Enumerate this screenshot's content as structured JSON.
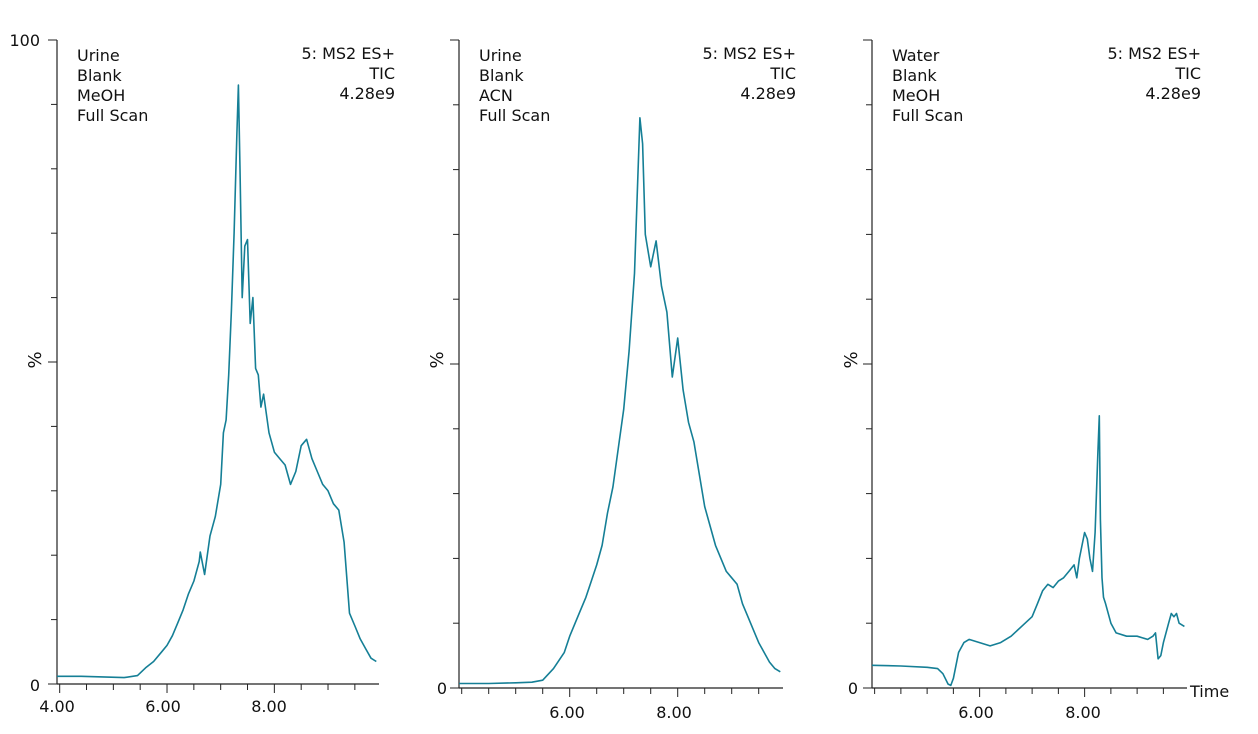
{
  "chart_data": [
    {
      "type": "line",
      "annotations": [
        "Urine",
        "Blank",
        "MeOH",
        "Full Scan"
      ],
      "header": [
        "5: MS2 ES+",
        "TIC",
        "4.28e9"
      ],
      "ylabel": "%",
      "y_tick_labels": [
        "100",
        "0"
      ],
      "x_tick_labels": [
        "4.00",
        "6.00",
        "8.00"
      ],
      "xlabel": "",
      "xlim": [
        3.95,
        9.95
      ],
      "ylim": [
        0,
        100
      ],
      "line_color": "#157f96",
      "series": [
        {
          "x": [
            3.95,
            4.4,
            4.8,
            5.2,
            5.45,
            5.6,
            5.75,
            5.9,
            6.0,
            6.1,
            6.2,
            6.3,
            6.4,
            6.5,
            6.6,
            6.62,
            6.7,
            6.8,
            6.9,
            7.0,
            7.05,
            7.1,
            7.15,
            7.2,
            7.25,
            7.3,
            7.33,
            7.36,
            7.4,
            7.45,
            7.5,
            7.55,
            7.6,
            7.65,
            7.7,
            7.75,
            7.8,
            7.9,
            8.0,
            8.1,
            8.2,
            8.3,
            8.4,
            8.5,
            8.6,
            8.7,
            8.8,
            8.9,
            9.0,
            9.1,
            9.2,
            9.3,
            9.4,
            9.5,
            9.6,
            9.7,
            9.8,
            9.9
          ],
          "y": [
            1.2,
            1.2,
            1.1,
            1.0,
            1.3,
            2.5,
            3.5,
            5,
            6,
            7.5,
            9.5,
            11.5,
            14,
            16,
            19,
            20.5,
            17,
            23,
            26,
            31,
            39,
            41,
            48,
            58,
            70,
            85,
            93,
            80,
            60,
            68,
            69,
            56,
            60,
            49,
            48,
            43,
            45,
            39,
            36,
            35,
            34,
            31,
            33,
            37,
            38,
            35,
            33,
            31,
            30,
            28,
            27,
            22,
            11,
            9,
            7,
            5.5,
            4,
            3.5
          ]
        }
      ]
    },
    {
      "type": "line",
      "annotations": [
        "Urine",
        "Blank",
        "ACN",
        "Full Scan"
      ],
      "header": [
        "5: MS2 ES+",
        "TIC",
        "4.28e9"
      ],
      "ylabel": "%",
      "y_tick_labels": [
        "0"
      ],
      "x_tick_labels": [
        "6.00",
        "8.00"
      ],
      "xlabel": "",
      "xlim": [
        3.95,
        9.95
      ],
      "ylim": [
        0,
        100
      ],
      "line_color": "#157f96",
      "series": [
        {
          "x": [
            3.95,
            4.5,
            5.0,
            5.3,
            5.5,
            5.7,
            5.9,
            6.0,
            6.1,
            6.2,
            6.3,
            6.4,
            6.5,
            6.6,
            6.7,
            6.8,
            6.9,
            7.0,
            7.1,
            7.2,
            7.25,
            7.3,
            7.35,
            7.4,
            7.5,
            7.6,
            7.7,
            7.8,
            7.9,
            8.0,
            8.1,
            8.2,
            8.3,
            8.4,
            8.5,
            8.6,
            8.7,
            8.8,
            8.9,
            9.0,
            9.1,
            9.2,
            9.3,
            9.4,
            9.5,
            9.6,
            9.7,
            9.8,
            9.9
          ],
          "y": [
            0.7,
            0.7,
            0.8,
            0.9,
            1.2,
            3,
            5.5,
            8,
            10,
            12,
            14,
            16.5,
            19,
            22,
            27,
            31,
            37,
            43,
            52,
            64,
            76,
            88,
            84,
            70,
            65,
            69,
            62,
            58,
            48,
            54,
            46,
            41,
            38,
            33,
            28,
            25,
            22,
            20,
            18,
            17,
            16,
            13,
            11,
            9,
            7,
            5.5,
            4,
            3,
            2.5
          ]
        }
      ]
    },
    {
      "type": "line",
      "annotations": [
        "Water",
        "Blank",
        "MeOH",
        "Full Scan"
      ],
      "header": [
        "5: MS2 ES+",
        "TIC",
        "4.28e9"
      ],
      "ylabel": "%",
      "y_tick_labels": [
        "0"
      ],
      "x_tick_labels": [
        "6.00",
        "8.00"
      ],
      "xlabel": "Time",
      "xlim": [
        3.95,
        9.95
      ],
      "ylim": [
        0,
        100
      ],
      "line_color": "#157f96",
      "series": [
        {
          "x": [
            3.95,
            4.5,
            5.0,
            5.2,
            5.3,
            5.4,
            5.45,
            5.5,
            5.55,
            5.6,
            5.7,
            5.8,
            6.0,
            6.2,
            6.4,
            6.6,
            6.8,
            7.0,
            7.1,
            7.2,
            7.3,
            7.4,
            7.5,
            7.6,
            7.7,
            7.8,
            7.85,
            7.9,
            8.0,
            8.05,
            8.1,
            8.15,
            8.2,
            8.25,
            8.28,
            8.3,
            8.33,
            8.36,
            8.4,
            8.5,
            8.6,
            8.8,
            9.0,
            9.2,
            9.3,
            9.35,
            9.4,
            9.45,
            9.5,
            9.6,
            9.65,
            9.7,
            9.75,
            9.8,
            9.9
          ],
          "y": [
            3.5,
            3.4,
            3.2,
            3.0,
            2.2,
            0.6,
            0.4,
            1.5,
            3.5,
            5.5,
            7,
            7.5,
            7,
            6.5,
            7,
            8,
            9.5,
            11,
            13,
            15,
            16,
            15.5,
            16.5,
            17,
            18,
            19,
            17,
            20,
            24,
            23,
            20,
            18,
            24,
            36,
            42,
            26,
            17,
            14,
            13,
            10,
            8.5,
            8,
            8,
            7.5,
            8,
            8.5,
            4.5,
            5,
            7,
            10,
            11.5,
            11,
            11.5,
            10,
            9.5
          ]
        }
      ]
    }
  ]
}
